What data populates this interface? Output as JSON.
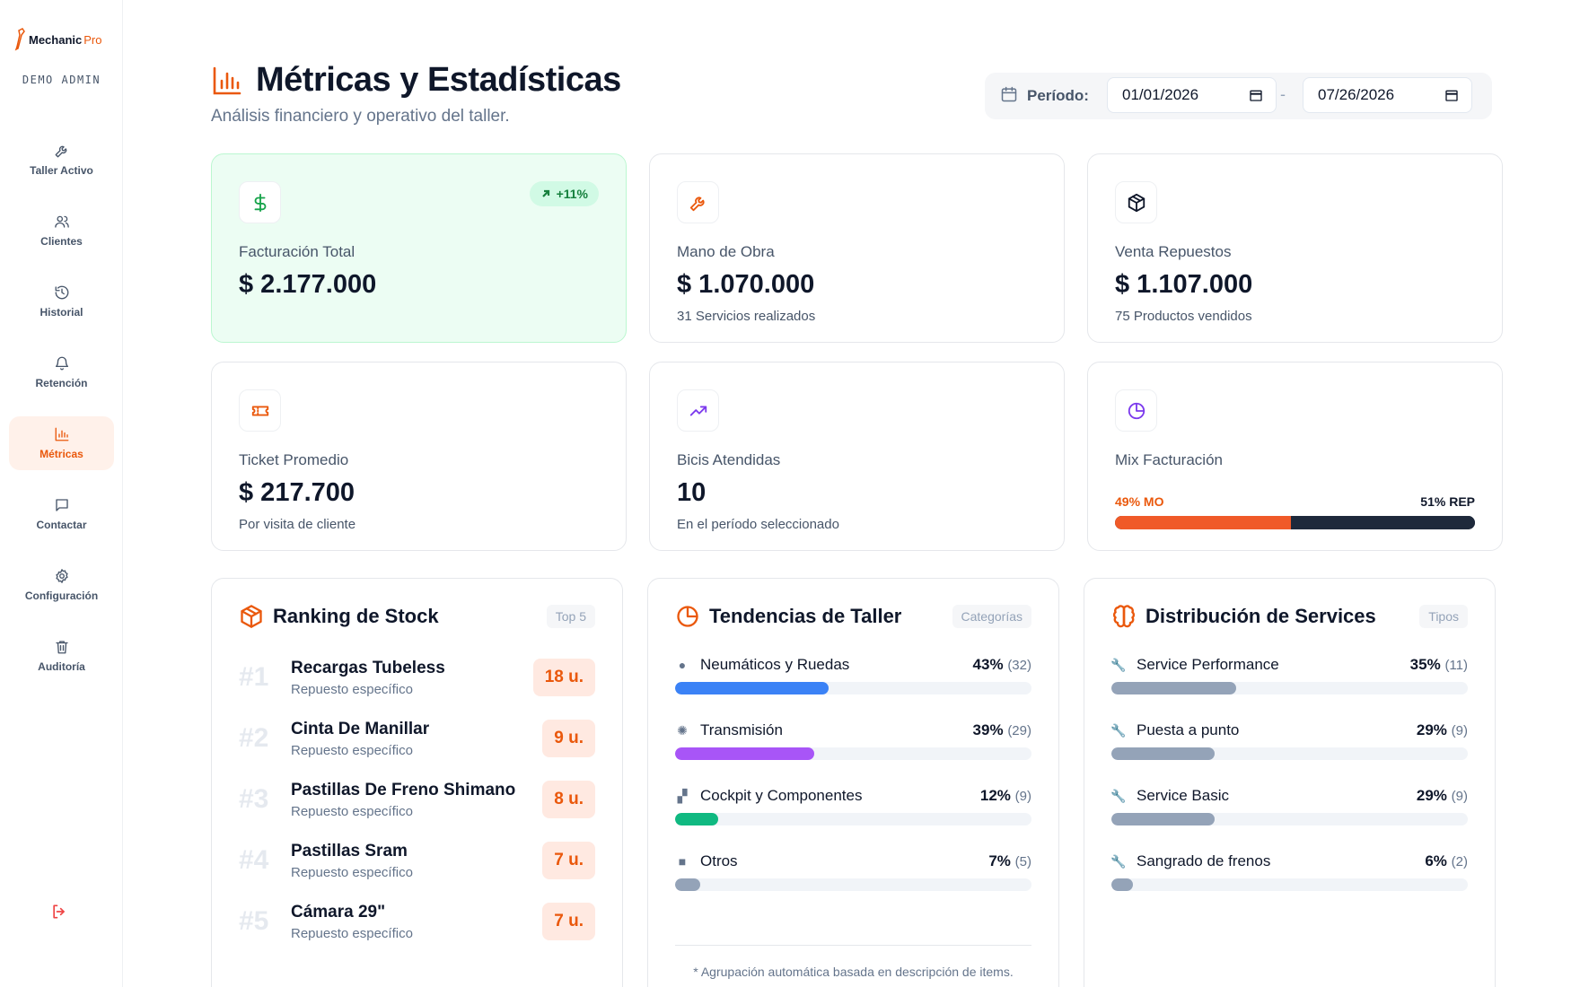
{
  "app": {
    "brand_part1": "Mechanic",
    "brand_part2": "Pro",
    "role": "DEMO ADMIN"
  },
  "sidebar": {
    "items": [
      {
        "label": "Taller Activo",
        "icon": "wrench-icon"
      },
      {
        "label": "Clientes",
        "icon": "users-icon"
      },
      {
        "label": "Historial",
        "icon": "history-icon"
      },
      {
        "label": "Retención",
        "icon": "bell-icon"
      },
      {
        "label": "Métricas",
        "icon": "bar-chart-icon",
        "active": true
      },
      {
        "label": "Contactar",
        "icon": "message-icon"
      },
      {
        "label": "Configuración",
        "icon": "gear-icon"
      },
      {
        "label": "Auditoría",
        "icon": "trash-icon"
      }
    ],
    "logout_icon": "logout-icon"
  },
  "header": {
    "title": "Métricas y Estadísticas",
    "subtitle": "Análisis financiero y operativo del taller.",
    "period_label": "Período:",
    "date_from": "01/01/2026",
    "date_to": "07/26/2026",
    "separator": "-"
  },
  "kpis": [
    {
      "label": "Facturación Total",
      "value": "$ 2.177.000",
      "sub": "",
      "badge": "+11%",
      "icon": "dollar-icon"
    },
    {
      "label": "Mano de Obra",
      "value": "$ 1.070.000",
      "sub": "31 Servicios realizados",
      "icon": "wrench-icon"
    },
    {
      "label": "Venta Repuestos",
      "value": "$ 1.107.000",
      "sub": "75 Productos vendidos",
      "icon": "box-icon"
    },
    {
      "label": "Ticket Promedio",
      "value": "$ 217.700",
      "sub": "Por visita de cliente",
      "icon": "ticket-icon"
    },
    {
      "label": "Bicis Atendidas",
      "value": "10",
      "sub": "En el período seleccionado",
      "icon": "trending-up-icon"
    },
    {
      "label": "Mix Facturación",
      "mo_label": "49% MO",
      "rep_label": "51% REP",
      "mo_pct": 49,
      "rep_pct": 51,
      "icon": "pie-icon"
    }
  ],
  "stock": {
    "title": "Ranking de Stock",
    "tag": "Top 5",
    "items": [
      {
        "rank": "#1",
        "name": "Recargas Tubeless",
        "sub": "Repuesto específico",
        "qty": "18 u."
      },
      {
        "rank": "#2",
        "name": "Cinta De Manillar",
        "sub": "Repuesto específico",
        "qty": "9 u."
      },
      {
        "rank": "#3",
        "name": "Pastillas De Freno Shimano",
        "sub": "Repuesto específico",
        "qty": "8 u."
      },
      {
        "rank": "#4",
        "name": "Pastillas Sram",
        "sub": "Repuesto específico",
        "qty": "7 u."
      },
      {
        "rank": "#5",
        "name": "Cámara 29\"",
        "sub": "Repuesto específico",
        "qty": "7 u."
      }
    ]
  },
  "trends": {
    "title": "Tendencias de Taller",
    "tag": "Categorías",
    "items": [
      {
        "name": "Neumáticos y Ruedas",
        "pct": "43%",
        "count": "(32)",
        "value": 43,
        "color": "#3b82f6",
        "emoji": "●"
      },
      {
        "name": "Transmisión",
        "pct": "39%",
        "count": "(29)",
        "value": 39,
        "color": "#a855f7",
        "emoji": "✺"
      },
      {
        "name": "Cockpit y Componentes",
        "pct": "12%",
        "count": "(9)",
        "value": 12,
        "color": "#10b981",
        "emoji": "▞"
      },
      {
        "name": "Otros",
        "pct": "7%",
        "count": "(5)",
        "value": 7,
        "color": "#94a3b8",
        "emoji": "■"
      }
    ],
    "note": "* Agrupación automática basada en descripción de items."
  },
  "services": {
    "title": "Distribución de Services",
    "tag": "Tipos",
    "items": [
      {
        "name": "Service Performance",
        "pct": "35%",
        "count": "(11)",
        "value": 35,
        "color": "#94a3b8"
      },
      {
        "name": "Puesta a punto",
        "pct": "29%",
        "count": "(9)",
        "value": 29,
        "color": "#94a3b8"
      },
      {
        "name": "Service Basic",
        "pct": "29%",
        "count": "(9)",
        "value": 29,
        "color": "#94a3b8"
      },
      {
        "name": "Sangrado de frenos",
        "pct": "6%",
        "count": "(2)",
        "value": 6,
        "color": "#94a3b8"
      }
    ]
  }
}
